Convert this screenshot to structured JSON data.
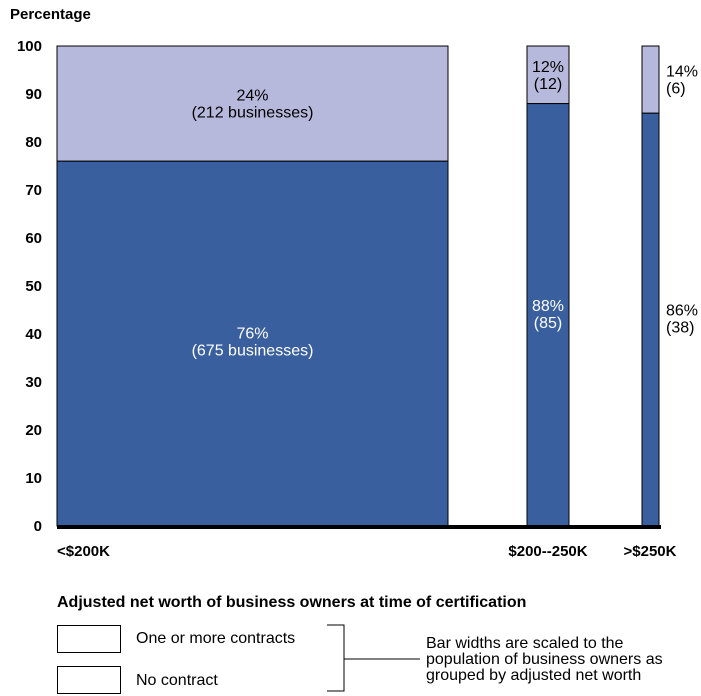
{
  "colors": {
    "no_contract": "#3a5f9e",
    "contracts": "#b7b9dc",
    "axis": "#000000"
  },
  "chart_data": {
    "type": "bar",
    "variable_width": true,
    "title": "",
    "ylabel": "Percentage",
    "xlabel": "Adjusted net worth of business owners at time of certification",
    "ylim": [
      0,
      100
    ],
    "yticks": [
      0,
      10,
      20,
      30,
      40,
      50,
      60,
      70,
      80,
      90,
      100
    ],
    "categories": [
      "<$200K",
      "$200--250K",
      ">$250K"
    ],
    "population": [
      887,
      97,
      44
    ],
    "series": [
      {
        "name": "No contract",
        "color_key": "no_contract",
        "values": [
          76,
          88,
          86
        ],
        "labels": [
          [
            "76%",
            "(675 businesses)"
          ],
          [
            "88%",
            "(85)"
          ],
          [
            "86%",
            "(38)"
          ]
        ]
      },
      {
        "name": "One or more contracts",
        "color_key": "contracts",
        "values": [
          24,
          12,
          14
        ],
        "labels": [
          [
            "24%",
            "(212 businesses)"
          ],
          [
            "12%",
            "(12)"
          ],
          [
            "14%",
            "(6)"
          ]
        ]
      }
    ],
    "legend": [
      "One or more contracts",
      "No contract"
    ],
    "note": "Bar widths are scaled to the population of business owners as grouped by adjusted net worth"
  }
}
